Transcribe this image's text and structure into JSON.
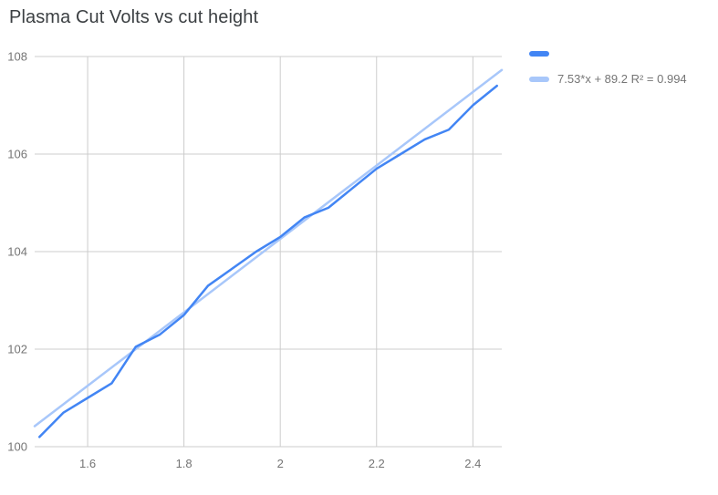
{
  "chart_data": {
    "type": "line",
    "title": "Plasma Cut Volts vs cut height",
    "xlabel": "",
    "ylabel": "",
    "xlim": [
      1.49,
      2.46
    ],
    "ylim": [
      100,
      108
    ],
    "grid": true,
    "legend_position": "right",
    "xticks": {
      "values": [
        1.6,
        1.8,
        2.0,
        2.2,
        2.4
      ],
      "labels": [
        "1.6",
        "1.8",
        "2",
        "2.2",
        "2.4"
      ]
    },
    "yticks": {
      "values": [
        100,
        102,
        104,
        106,
        108
      ],
      "labels": [
        "100",
        "102",
        "104",
        "106",
        "108"
      ]
    },
    "series": [
      {
        "name": "",
        "color": "#4285f4",
        "x": [
          1.5,
          1.55,
          1.6,
          1.65,
          1.7,
          1.75,
          1.8,
          1.85,
          1.9,
          1.95,
          2.0,
          2.05,
          2.1,
          2.15,
          2.2,
          2.25,
          2.3,
          2.35,
          2.4,
          2.45
        ],
        "y": [
          100.2,
          100.7,
          101.0,
          101.3,
          102.05,
          102.3,
          102.7,
          103.3,
          103.65,
          104.0,
          104.3,
          104.7,
          104.9,
          105.3,
          105.7,
          106.0,
          106.3,
          106.5,
          107.0,
          107.4
        ]
      }
    ],
    "trendline": {
      "label": "7.53*x + 89.2 R² = 0.994",
      "slope": 7.53,
      "intercept": 89.2,
      "r2": 0.994,
      "color": "#a8c7fa"
    },
    "colors": {
      "grid": "#cccccc",
      "axis_text": "#757575",
      "title": "#3c4043",
      "background": "#ffffff"
    }
  }
}
